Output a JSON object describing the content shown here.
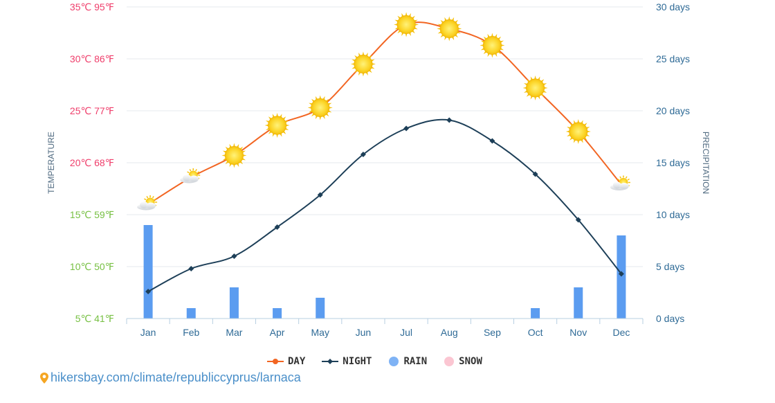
{
  "chart_data": {
    "type": "line",
    "categories": [
      "Jan",
      "Feb",
      "Mar",
      "Apr",
      "May",
      "Jun",
      "Jul",
      "Aug",
      "Sep",
      "Oct",
      "Nov",
      "Dec"
    ],
    "series": [
      {
        "name": "DAY",
        "type": "line",
        "axis": "temperature_c",
        "color": "#f26522",
        "values": [
          16.0,
          18.6,
          20.7,
          23.6,
          25.3,
          29.5,
          33.3,
          32.9,
          31.3,
          27.2,
          23.0,
          17.9
        ]
      },
      {
        "name": "NIGHT",
        "type": "line",
        "axis": "temperature_c",
        "color": "#1d3f58",
        "values": [
          7.6,
          9.8,
          11.0,
          13.8,
          16.9,
          20.8,
          23.3,
          24.1,
          22.1,
          18.9,
          14.5,
          9.3
        ]
      },
      {
        "name": "RAIN",
        "type": "bar",
        "axis": "precipitation_days",
        "color": "#5b9cf0",
        "values": [
          9,
          1,
          3,
          1,
          2,
          0,
          0,
          0,
          0,
          1,
          3,
          8
        ]
      },
      {
        "name": "SNOW",
        "type": "bar",
        "axis": "precipitation_days",
        "color": "#f9b5c4",
        "values": [
          0,
          0,
          0,
          0,
          0,
          0,
          0,
          0,
          0,
          0,
          0,
          0
        ]
      }
    ],
    "y_left": {
      "label": "TEMPERATURE",
      "unit": "°C",
      "ylim": [
        5,
        35
      ],
      "ticks": [
        "5℃ 41℉",
        "10℃ 50℉",
        "15℃ 59℉",
        "20℃ 68℉",
        "25℃ 77℉",
        "30℃ 86℉",
        "35℃ 95℉"
      ],
      "tick_colors": [
        "#77c043",
        "#77c043",
        "#77c043",
        "#ef3e6b",
        "#ef3e6b",
        "#ef3e6b",
        "#ef3e6b"
      ]
    },
    "y_right": {
      "label": "PRECIPITATION",
      "unit": "days",
      "ylim": [
        0,
        30
      ],
      "ticks": [
        "0 days",
        "5 days",
        "10 days",
        "15 days",
        "20 days",
        "25 days",
        "30 days"
      ],
      "tick_color": "#2e6a96"
    },
    "weather_icons": [
      "partly-cloudy-icon",
      "partly-cloudy-icon",
      "sun-icon",
      "sun-icon",
      "sun-icon",
      "sun-icon",
      "sun-icon",
      "sun-icon",
      "sun-icon",
      "sun-icon",
      "sun-icon",
      "partly-cloudy-icon"
    ],
    "grid": true,
    "legend_position": "bottom-center"
  },
  "legend": [
    {
      "label": "DAY",
      "icon": "line-circle-marker-icon",
      "color": "#f26522"
    },
    {
      "label": "NIGHT",
      "icon": "line-diamond-marker-icon",
      "color": "#1d3f58"
    },
    {
      "label": "RAIN",
      "icon": "circle-icon",
      "color": "#5b9cf0"
    },
    {
      "label": "SNOW",
      "icon": "circle-icon",
      "color": "#f9b5c4"
    }
  ],
  "source": {
    "icon": "location-pin-icon",
    "icon_color": "#f5a623",
    "text": "hikersbay.com/climate/republiccyprus/larnaca"
  }
}
